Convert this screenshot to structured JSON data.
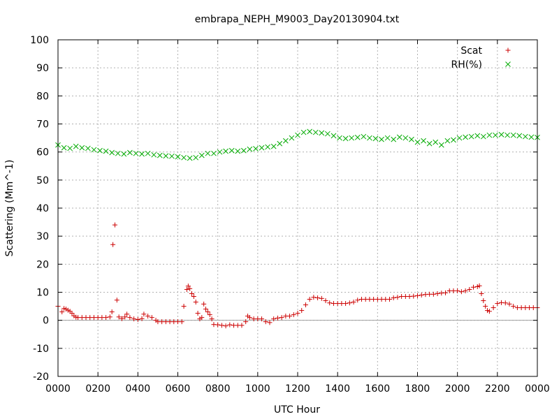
{
  "chart_data": {
    "type": "scatter",
    "title": "embrapa_NEPH_M9003_Day20130904.txt",
    "xlabel": "UTC Hour",
    "ylabel": "Scattering (Mm^-1)",
    "xlim": [
      0,
      24
    ],
    "ylim": [
      -20,
      100
    ],
    "x_ticks": [
      0,
      2,
      4,
      6,
      8,
      10,
      12,
      14,
      16,
      18,
      20,
      22,
      24
    ],
    "x_tick_labels": [
      "0000",
      "0200",
      "0400",
      "0600",
      "0800",
      "1000",
      "1200",
      "1400",
      "1600",
      "1800",
      "2000",
      "2200",
      "0000"
    ],
    "y_ticks": [
      -20,
      -10,
      0,
      10,
      20,
      30,
      40,
      50,
      60,
      70,
      80,
      90,
      100
    ],
    "y_tick_labels": [
      "-20",
      "-10",
      "0",
      "10",
      "20",
      "30",
      "40",
      "50",
      "60",
      "70",
      "80",
      "90",
      "100"
    ],
    "grid": true,
    "zero_line": true,
    "legend": "top-right",
    "series": [
      {
        "name": "Scat",
        "marker": "+",
        "color": "#cc0000",
        "points": [
          [
            0.0,
            5
          ],
          [
            0.2,
            3
          ],
          [
            0.3,
            4.2
          ],
          [
            0.4,
            4
          ],
          [
            0.5,
            3.6
          ],
          [
            0.6,
            3.2
          ],
          [
            0.7,
            2.5
          ],
          [
            0.8,
            1.6
          ],
          [
            0.9,
            1.1
          ],
          [
            1.0,
            1.0
          ],
          [
            1.2,
            1.0
          ],
          [
            1.4,
            1.0
          ],
          [
            1.6,
            1.0
          ],
          [
            1.8,
            1.0
          ],
          [
            2.0,
            1.0
          ],
          [
            2.2,
            1.0
          ],
          [
            2.4,
            1.0
          ],
          [
            2.6,
            1.2
          ],
          [
            2.7,
            3
          ],
          [
            2.75,
            27
          ],
          [
            2.85,
            34
          ],
          [
            2.95,
            7.2
          ],
          [
            3.05,
            1.2
          ],
          [
            3.2,
            0.6
          ],
          [
            3.35,
            1.2
          ],
          [
            3.45,
            2.2
          ],
          [
            3.6,
            1.0
          ],
          [
            3.8,
            0.5
          ],
          [
            4.0,
            0.3
          ],
          [
            4.2,
            0.6
          ],
          [
            4.3,
            2.2
          ],
          [
            4.5,
            1.5
          ],
          [
            4.7,
            1.0
          ],
          [
            4.9,
            0
          ],
          [
            5.0,
            -0.5
          ],
          [
            5.2,
            -0.5
          ],
          [
            5.4,
            -0.5
          ],
          [
            5.6,
            -0.5
          ],
          [
            5.8,
            -0.5
          ],
          [
            6.0,
            -0.5
          ],
          [
            6.2,
            -0.5
          ],
          [
            6.3,
            5
          ],
          [
            6.45,
            11
          ],
          [
            6.52,
            12.2
          ],
          [
            6.6,
            11.3
          ],
          [
            6.7,
            9.5
          ],
          [
            6.8,
            8.5
          ],
          [
            6.9,
            6.5
          ],
          [
            7.0,
            2.5
          ],
          [
            7.1,
            0.5
          ],
          [
            7.2,
            1.0
          ],
          [
            7.3,
            5.8
          ],
          [
            7.4,
            4
          ],
          [
            7.5,
            3
          ],
          [
            7.6,
            2
          ],
          [
            7.7,
            0.5
          ],
          [
            7.8,
            -1.5
          ],
          [
            8.0,
            -1.6
          ],
          [
            8.2,
            -1.8
          ],
          [
            8.4,
            -2
          ],
          [
            8.6,
            -1.6
          ],
          [
            8.8,
            -1.8
          ],
          [
            9.0,
            -1.8
          ],
          [
            9.2,
            -1.8
          ],
          [
            9.4,
            -0.5
          ],
          [
            9.5,
            1.5
          ],
          [
            9.6,
            1.0
          ],
          [
            9.8,
            0.5
          ],
          [
            10.0,
            0.5
          ],
          [
            10.2,
            0.5
          ],
          [
            10.4,
            -0.5
          ],
          [
            10.6,
            -0.8
          ],
          [
            10.8,
            0.5
          ],
          [
            11.0,
            0.8
          ],
          [
            11.2,
            1.0
          ],
          [
            11.4,
            1.5
          ],
          [
            11.6,
            1.5
          ],
          [
            11.8,
            2
          ],
          [
            12.0,
            2.5
          ],
          [
            12.2,
            3.5
          ],
          [
            12.4,
            5.5
          ],
          [
            12.6,
            7.5
          ],
          [
            12.8,
            8.2
          ],
          [
            13.0,
            8
          ],
          [
            13.2,
            7.8
          ],
          [
            13.4,
            7
          ],
          [
            13.6,
            6.2
          ],
          [
            13.8,
            6
          ],
          [
            14.0,
            6
          ],
          [
            14.2,
            6
          ],
          [
            14.4,
            6
          ],
          [
            14.6,
            6.2
          ],
          [
            14.8,
            6.5
          ],
          [
            15.0,
            7.2
          ],
          [
            15.2,
            7.5
          ],
          [
            15.4,
            7.5
          ],
          [
            15.6,
            7.5
          ],
          [
            15.8,
            7.5
          ],
          [
            16.0,
            7.5
          ],
          [
            16.2,
            7.5
          ],
          [
            16.4,
            7.5
          ],
          [
            16.6,
            7.5
          ],
          [
            16.8,
            8
          ],
          [
            17.0,
            8.2
          ],
          [
            17.2,
            8.5
          ],
          [
            17.4,
            8.5
          ],
          [
            17.6,
            8.5
          ],
          [
            17.8,
            8.6
          ],
          [
            18.0,
            8.8
          ],
          [
            18.2,
            9
          ],
          [
            18.4,
            9.2
          ],
          [
            18.6,
            9.3
          ],
          [
            18.8,
            9.3
          ],
          [
            19.0,
            9.5
          ],
          [
            19.2,
            9.7
          ],
          [
            19.4,
            9.8
          ],
          [
            19.6,
            10.5
          ],
          [
            19.8,
            10.5
          ],
          [
            20.0,
            10.5
          ],
          [
            20.2,
            10.2
          ],
          [
            20.4,
            10.5
          ],
          [
            20.6,
            11
          ],
          [
            20.8,
            11.8
          ],
          [
            21.0,
            12
          ],
          [
            21.1,
            12.3
          ],
          [
            21.2,
            9.5
          ],
          [
            21.3,
            7
          ],
          [
            21.4,
            5
          ],
          [
            21.5,
            3.5
          ],
          [
            21.6,
            3.2
          ],
          [
            21.8,
            4.5
          ],
          [
            22.0,
            6
          ],
          [
            22.2,
            6.3
          ],
          [
            22.4,
            6.2
          ],
          [
            22.6,
            5.8
          ],
          [
            22.8,
            5
          ],
          [
            23.0,
            4.5
          ],
          [
            23.2,
            4.5
          ],
          [
            23.4,
            4.5
          ],
          [
            23.6,
            4.5
          ],
          [
            23.8,
            4.5
          ],
          [
            24.0,
            4.5
          ]
        ]
      },
      {
        "name": "RH(%)",
        "marker": "x",
        "color": "#00aa00",
        "points": [
          [
            0.0,
            62.5
          ],
          [
            0.3,
            61.5
          ],
          [
            0.6,
            61.3
          ],
          [
            0.9,
            62
          ],
          [
            1.2,
            61.5
          ],
          [
            1.5,
            61.3
          ],
          [
            1.8,
            60.8
          ],
          [
            2.1,
            60.5
          ],
          [
            2.4,
            60.3
          ],
          [
            2.7,
            59.8
          ],
          [
            3.0,
            59.5
          ],
          [
            3.3,
            59.3
          ],
          [
            3.6,
            59.8
          ],
          [
            3.9,
            59.5
          ],
          [
            4.2,
            59.3
          ],
          [
            4.5,
            59.5
          ],
          [
            4.8,
            59
          ],
          [
            5.1,
            58.8
          ],
          [
            5.4,
            58.6
          ],
          [
            5.7,
            58.5
          ],
          [
            6.0,
            58.3
          ],
          [
            6.3,
            58
          ],
          [
            6.6,
            57.8
          ],
          [
            6.9,
            58
          ],
          [
            7.2,
            58.8
          ],
          [
            7.5,
            59.5
          ],
          [
            7.8,
            59.5
          ],
          [
            8.1,
            60
          ],
          [
            8.4,
            60.3
          ],
          [
            8.7,
            60.5
          ],
          [
            9.0,
            60.3
          ],
          [
            9.3,
            60.5
          ],
          [
            9.6,
            61
          ],
          [
            9.9,
            61.2
          ],
          [
            10.2,
            61.5
          ],
          [
            10.5,
            61.8
          ],
          [
            10.8,
            62
          ],
          [
            11.1,
            63
          ],
          [
            11.4,
            64
          ],
          [
            11.7,
            65
          ],
          [
            12.0,
            66
          ],
          [
            12.3,
            67
          ],
          [
            12.6,
            67.3
          ],
          [
            12.9,
            67
          ],
          [
            13.2,
            66.8
          ],
          [
            13.5,
            66.5
          ],
          [
            13.8,
            65.8
          ],
          [
            14.1,
            65
          ],
          [
            14.4,
            64.8
          ],
          [
            14.7,
            65
          ],
          [
            15.0,
            65.2
          ],
          [
            15.3,
            65.5
          ],
          [
            15.6,
            65
          ],
          [
            15.9,
            64.8
          ],
          [
            16.2,
            64.5
          ],
          [
            16.5,
            65
          ],
          [
            16.8,
            64.5
          ],
          [
            17.1,
            65.3
          ],
          [
            17.4,
            65
          ],
          [
            17.7,
            64.5
          ],
          [
            18.0,
            63.5
          ],
          [
            18.3,
            64
          ],
          [
            18.6,
            63
          ],
          [
            18.9,
            63.5
          ],
          [
            19.2,
            62.5
          ],
          [
            19.5,
            64
          ],
          [
            19.8,
            64.3
          ],
          [
            20.1,
            65
          ],
          [
            20.4,
            65.3
          ],
          [
            20.7,
            65.5
          ],
          [
            21.0,
            65.8
          ],
          [
            21.3,
            65.5
          ],
          [
            21.6,
            66
          ],
          [
            21.9,
            66
          ],
          [
            22.2,
            66.2
          ],
          [
            22.5,
            66
          ],
          [
            22.8,
            66
          ],
          [
            23.1,
            65.8
          ],
          [
            23.4,
            65.5
          ],
          [
            23.7,
            65.3
          ],
          [
            24.0,
            65.2
          ]
        ]
      }
    ]
  }
}
